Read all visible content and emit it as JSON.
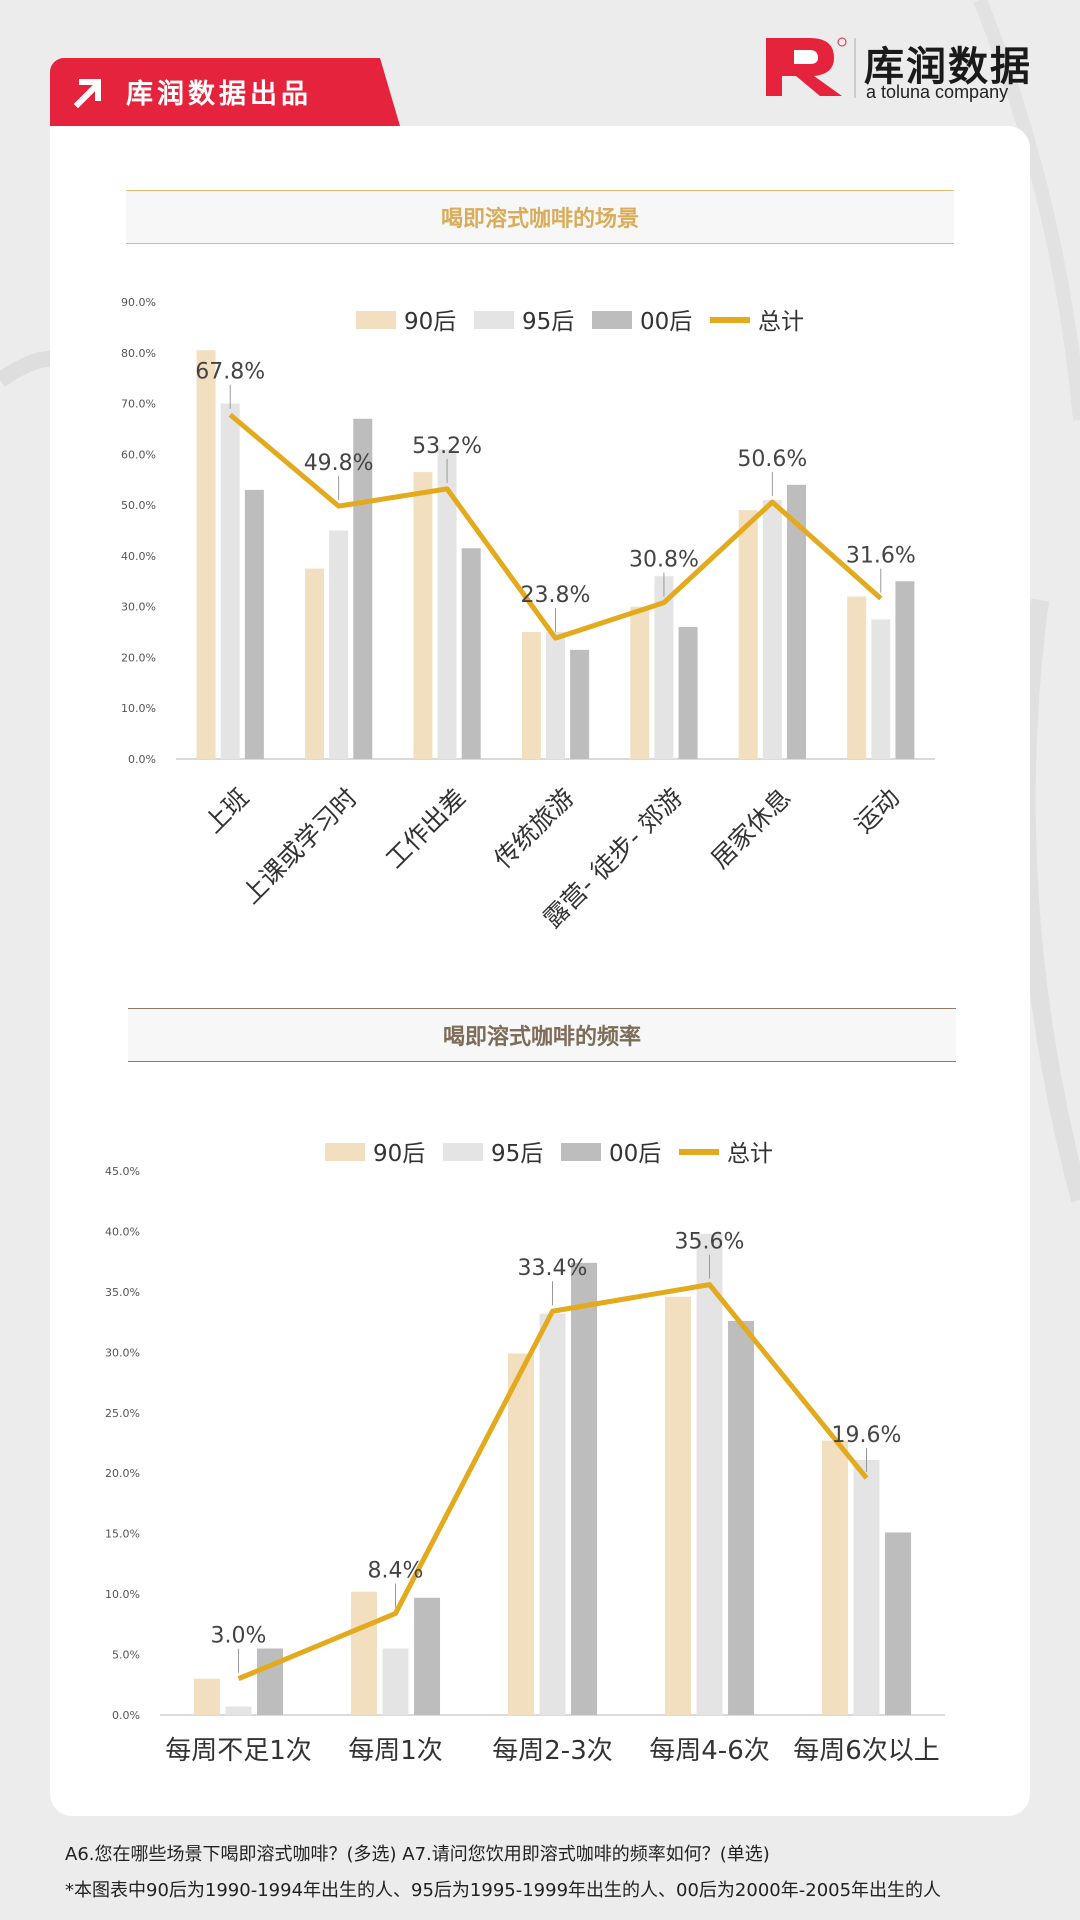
{
  "brand": {
    "tag_text": "库润数据出品",
    "logo_name": "库润数据",
    "logo_sub": "a toluna company",
    "colors": {
      "red": "#e6233c"
    }
  },
  "series_colors": {
    "90后": "#f2dfc0",
    "95后": "#e4e4e4",
    "00后": "#bdbdbd",
    "总计": "#e2aa1c"
  },
  "chart_data": [
    {
      "type": "bar",
      "title": "喝即溶式咖啡的场景",
      "categories": [
        "上班",
        "上课或学习时",
        "工作出差",
        "传统旅游",
        "露营、徒步、郊游",
        "居家休息",
        "运动"
      ],
      "category_labels": [
        "上班",
        "上课或学习时",
        "工作出差",
        "传统旅游",
        "露营- 徒步- 郊游",
        "居家休息",
        "运动"
      ],
      "series": [
        {
          "name": "90后",
          "values": [
            80.5,
            37.5,
            56.5,
            25.0,
            30.0,
            49.0,
            32.0
          ]
        },
        {
          "name": "95后",
          "values": [
            70.0,
            45.0,
            61.0,
            25.0,
            36.0,
            51.0,
            27.5
          ]
        },
        {
          "name": "00后",
          "values": [
            53.0,
            67.0,
            41.5,
            21.5,
            26.0,
            54.0,
            35.0
          ]
        },
        {
          "name": "总计",
          "type": "line",
          "values": [
            67.8,
            49.8,
            53.2,
            23.8,
            30.8,
            50.6,
            31.6
          ]
        }
      ],
      "data_labels": [
        "67.8%",
        "49.8%",
        "53.2%",
        "23.8%",
        "30.8%",
        "50.6%",
        "31.6%"
      ],
      "ylim": [
        0,
        90
      ],
      "yticks": [
        "0.0%",
        "10.0%",
        "20.0%",
        "30.0%",
        "40.0%",
        "50.0%",
        "60.0%",
        "70.0%",
        "80.0%",
        "90.0%"
      ],
      "legend": "top-center",
      "grid": false
    },
    {
      "type": "bar",
      "title": "喝即溶式咖啡的频率",
      "categories": [
        "每周不足1次",
        "每周1次",
        "每周2-3次",
        "每周4-6次",
        "每周6次以上"
      ],
      "series": [
        {
          "name": "90后",
          "values": [
            3.0,
            10.2,
            29.9,
            34.6,
            22.7
          ]
        },
        {
          "name": "95后",
          "values": [
            0.7,
            5.5,
            33.2,
            39.8,
            21.1
          ]
        },
        {
          "name": "00后",
          "values": [
            5.5,
            9.7,
            37.4,
            32.6,
            15.1
          ]
        },
        {
          "name": "总计",
          "type": "line",
          "values": [
            3.0,
            8.4,
            33.4,
            35.6,
            19.6
          ]
        }
      ],
      "data_labels": [
        "3.0%",
        "8.4%",
        "33.4%",
        "35.6%",
        "19.6%"
      ],
      "ylim": [
        0,
        45
      ],
      "yticks": [
        "0.0%",
        "5.0%",
        "10.0%",
        "15.0%",
        "20.0%",
        "25.0%",
        "30.0%",
        "35.0%",
        "40.0%",
        "45.0%"
      ],
      "legend": "top-center",
      "grid": false
    }
  ],
  "footnotes": [
    "A6.您在哪些场景下喝即溶式咖啡？(多选) A7.请问您饮用即溶式咖啡的频率如何？(单选)",
    "*本图表中90后为1990-1994年出生的人、95后为1995-1999年出生的人、00后为2000年-2005年出生的人"
  ]
}
